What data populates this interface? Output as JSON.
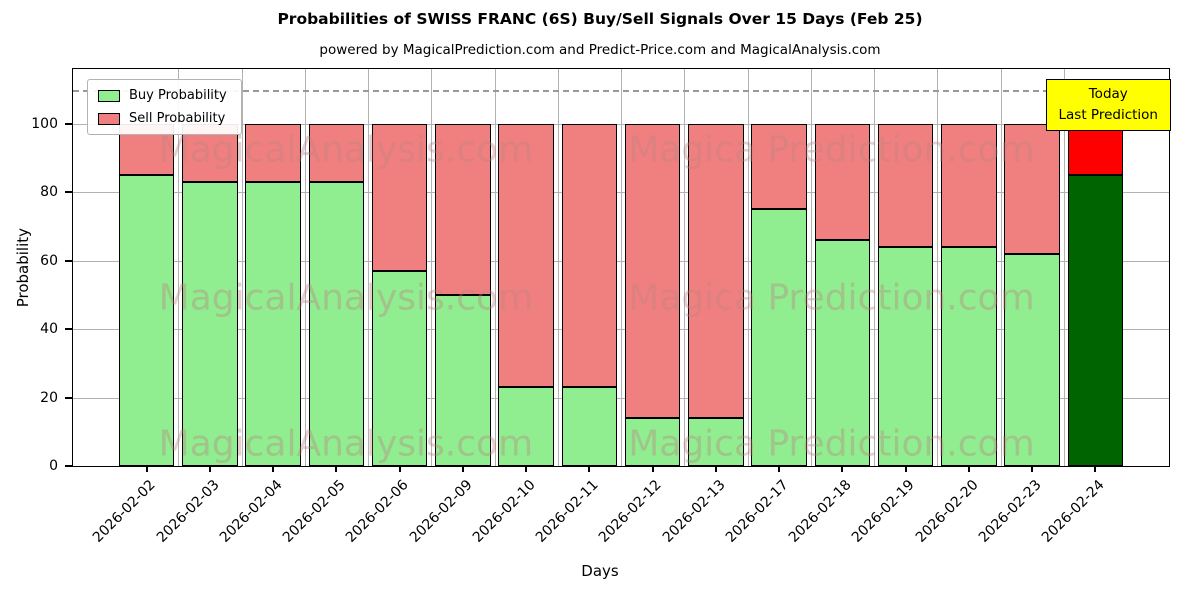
{
  "chart_data": {
    "type": "bar",
    "stacked": true,
    "title": "Probabilities of SWISS FRANC (6S) Buy/Sell Signals Over 15 Days (Feb 25)",
    "subtitle": "powered by MagicalPrediction.com and Predict-Price.com and MagicalAnalysis.com",
    "xlabel": "Days",
    "ylabel": "Probability",
    "categories": [
      "2026-02-02",
      "2026-02-03",
      "2026-02-04",
      "2026-02-05",
      "2026-02-06",
      "2026-02-09",
      "2026-02-10",
      "2026-02-11",
      "2026-02-12",
      "2026-02-13",
      "2026-02-17",
      "2026-02-18",
      "2026-02-19",
      "2026-02-20",
      "2026-02-23",
      "2026-02-24"
    ],
    "series": [
      {
        "name": "Buy Probability",
        "color": "#90EE90",
        "values": [
          85,
          83,
          83,
          83,
          57,
          50,
          23,
          23,
          14,
          14,
          75,
          66,
          64,
          64,
          62,
          85
        ]
      },
      {
        "name": "Sell Probability",
        "color": "#F08080",
        "values": [
          15,
          17,
          17,
          17,
          43,
          50,
          77,
          77,
          86,
          86,
          25,
          34,
          36,
          36,
          38,
          15
        ]
      }
    ],
    "today_index": 15,
    "today_colors": {
      "buy": "#006400",
      "sell": "#FF0000"
    },
    "ylim": [
      0,
      116
    ],
    "yticks": [
      0,
      20,
      40,
      60,
      80,
      100
    ],
    "dashed_line_y": 110,
    "grid": true,
    "legend_position": "upper left",
    "bar_edge_color": "#000000"
  },
  "annotation": {
    "line1": "Today",
    "line2": "Last Prediction",
    "bg_color": "#FFFF00"
  },
  "watermarks": {
    "left_text": "MagicalAnalysis.com",
    "right_text": "Magica Prediction.com"
  }
}
